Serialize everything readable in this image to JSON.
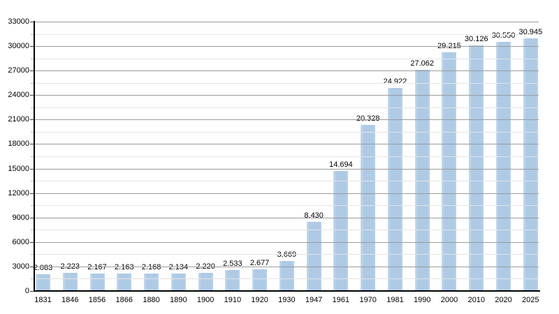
{
  "chart_data": {
    "type": "bar",
    "title": "",
    "xlabel": "",
    "ylabel": "",
    "categories": [
      "1831",
      "1846",
      "1856",
      "1866",
      "1880",
      "1890",
      "1900",
      "1910",
      "1920",
      "1930",
      "1947",
      "1961",
      "1970",
      "1981",
      "1990",
      "2000",
      "2010",
      "2020",
      "2025"
    ],
    "values": [
      2083,
      2223,
      2167,
      2163,
      2168,
      2134,
      2220,
      2533,
      2677,
      3669,
      8430,
      14694,
      20328,
      24922,
      27062,
      29215,
      30126,
      30550,
      30945
    ],
    "value_labels": [
      "2.083",
      "2.223",
      "2.167",
      "2.163",
      "2.168",
      "2.134",
      "2.220",
      "2.533",
      "2.677",
      "3.669",
      "8.430",
      "14.694",
      "20.328",
      "24.922",
      "27.062",
      "29.215",
      "30.126",
      "30.550",
      "30.945"
    ],
    "ylim": [
      0,
      33000
    ],
    "yticks": [
      0,
      3000,
      6000,
      9000,
      12000,
      15000,
      18000,
      21000,
      24000,
      27000,
      30000,
      33000
    ],
    "ytick_labels": [
      "0",
      "3000",
      "6000",
      "9000",
      "12000",
      "15000",
      "18000",
      "21000",
      "24000",
      "27000",
      "30000",
      "33000"
    ],
    "ytick_minor_step": 1500,
    "legend": null,
    "grid": "horizontal major and minor",
    "colors": {
      "bar": "#aecae5",
      "grid_major": "#9b9b9b",
      "grid_minor": "#e4e4e4",
      "axis": "#000000",
      "text": "#000000",
      "background": "#ffffff"
    }
  }
}
